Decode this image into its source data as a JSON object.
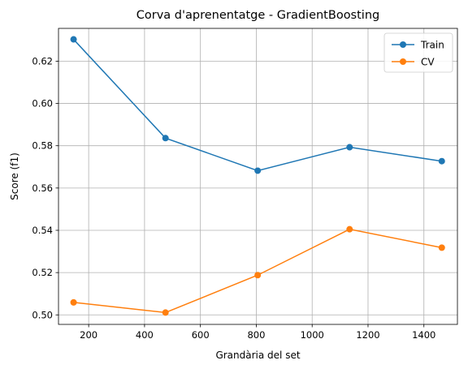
{
  "chart_data": {
    "type": "line",
    "title": "Corva d'aprenentatge - GradientBoosting",
    "xlabel": "Grandària del set",
    "ylabel": "Score (f1)",
    "xlim": [
      92,
      1520
    ],
    "ylim": [
      0.4955,
      0.6355
    ],
    "xticks": [
      200,
      400,
      600,
      800,
      1000,
      1200,
      1400
    ],
    "xtick_labels": [
      "200",
      "400",
      "600",
      "800",
      "1000",
      "1200",
      "1400"
    ],
    "yticks": [
      0.5,
      0.52,
      0.54,
      0.56,
      0.58,
      0.6,
      0.62
    ],
    "ytick_labels": [
      "0.50",
      "0.52",
      "0.54",
      "0.56",
      "0.58",
      "0.60",
      "0.62"
    ],
    "grid": true,
    "legend_position": "top-right",
    "x": [
      146,
      475,
      805,
      1134,
      1464
    ],
    "series": [
      {
        "name": "Train",
        "color": "#1f77b4",
        "values": [
          0.6303,
          0.5836,
          0.5682,
          0.5793,
          0.5727
        ]
      },
      {
        "name": "CV",
        "color": "#ff7f0e",
        "values": [
          0.5059,
          0.5011,
          0.5188,
          0.5405,
          0.5318
        ]
      }
    ]
  }
}
